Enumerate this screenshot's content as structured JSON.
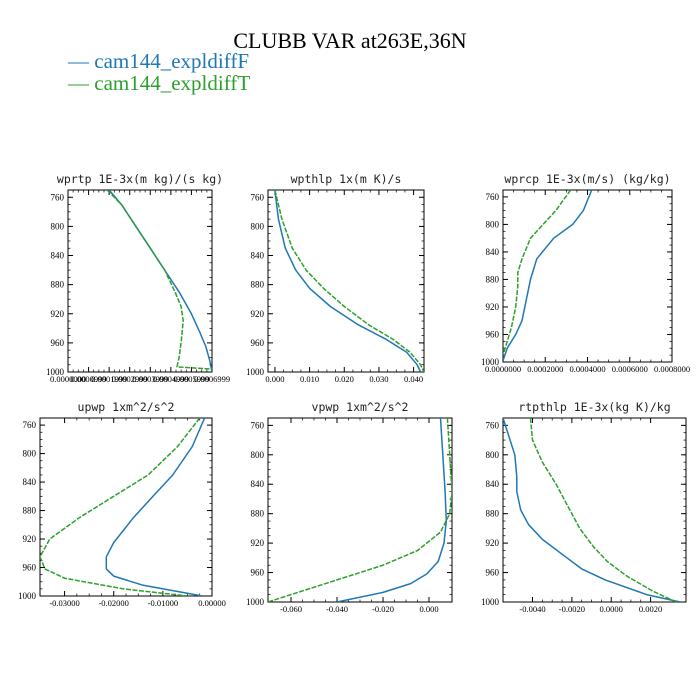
{
  "title": "CLUBB VAR at263E,36N",
  "legend": [
    {
      "label": "— cam144_expldiffF",
      "color": "#1f77b4"
    },
    {
      "label": "— cam144_expldiffT",
      "color": "#2ca02c"
    }
  ],
  "chart_data": [
    {
      "type": "line",
      "title": "wprtp  1E-3x(m kg)/(s kg)",
      "xlim": [
        0.0,
        0.0007
      ],
      "ylim": [
        1000,
        750
      ],
      "xticks": [
        0.0,
        0.0001,
        0.0002,
        0.0003,
        0.0004,
        0.0005,
        0.0006,
        0.0007
      ],
      "xticklabels": [
        "0.0000000",
        "0.0000999",
        "0.0001999",
        "0.0002999",
        "0.0003999",
        "0.0004999",
        "0.0005999",
        "0.0006999"
      ],
      "yticks": [
        760,
        800,
        840,
        880,
        920,
        960,
        1000
      ],
      "series": [
        {
          "name": "cam144_expldiffF",
          "color": "#1f77b4",
          "x": [
            0.0002,
            0.00026,
            0.00033,
            0.0004,
            0.00047,
            0.00054,
            0.0006,
            0.00064,
            0.00067,
            0.00069,
            0.0007
          ],
          "y": [
            750,
            770,
            800,
            830,
            860,
            890,
            920,
            945,
            965,
            985,
            1000
          ]
        },
        {
          "name": "cam144_expldiffT",
          "color": "#2ca02c",
          "x": [
            0.00019,
            0.00026,
            0.00033,
            0.0004,
            0.00047,
            0.00052,
            0.00055,
            0.00056,
            0.00055,
            0.00054,
            0.00053,
            0.0007
          ],
          "y": [
            750,
            770,
            800,
            830,
            860,
            890,
            910,
            930,
            960,
            980,
            993,
            996
          ]
        }
      ]
    },
    {
      "type": "line",
      "title": "wpthlp  1x(m K)/s",
      "xlim": [
        -0.002,
        0.043
      ],
      "ylim": [
        1000,
        750
      ],
      "xticks": [
        0.0,
        0.01,
        0.02,
        0.03,
        0.04
      ],
      "xticklabels": [
        "0.000",
        "0.010",
        "0.020",
        "0.030",
        "0.040"
      ],
      "yticks": [
        760,
        800,
        840,
        880,
        920,
        960,
        1000
      ],
      "series": [
        {
          "name": "cam144_expldiffF",
          "color": "#1f77b4",
          "x": [
            0.0,
            0.001,
            0.003,
            0.006,
            0.01,
            0.016,
            0.024,
            0.032,
            0.038,
            0.041,
            0.042
          ],
          "y": [
            750,
            790,
            830,
            860,
            885,
            910,
            935,
            955,
            973,
            990,
            1000
          ]
        },
        {
          "name": "cam144_expldiffT",
          "color": "#2ca02c",
          "x": [
            0.0,
            0.002,
            0.005,
            0.009,
            0.014,
            0.02,
            0.027,
            0.034,
            0.039,
            0.042,
            0.043
          ],
          "y": [
            750,
            790,
            830,
            860,
            885,
            910,
            935,
            955,
            973,
            990,
            1000
          ]
        }
      ]
    },
    {
      "type": "line",
      "title": "wprcp  1E-3x(m/s) (kg/kg)",
      "xlim": [
        0.0,
        0.0008
      ],
      "ylim": [
        1000,
        750
      ],
      "xticks": [
        0.0,
        0.0002,
        0.0004,
        0.0006,
        0.0008
      ],
      "xticklabels": [
        "0.0000000",
        "0.0002000",
        "0.0004000",
        "0.0006000",
        "0.0008000"
      ],
      "yticks": [
        760,
        800,
        840,
        880,
        920,
        960,
        1000
      ],
      "series": [
        {
          "name": "cam144_expldiffF",
          "color": "#1f77b4",
          "x": [
            0.00042,
            0.00038,
            0.00033,
            0.00024,
            0.00016,
            0.00013,
            0.00011,
            9e-05,
            6e-05,
            2e-05,
            0.0
          ],
          "y": [
            750,
            780,
            800,
            820,
            850,
            880,
            910,
            940,
            960,
            980,
            998
          ]
        },
        {
          "name": "cam144_expldiffT",
          "color": "#2ca02c",
          "x": [
            0.00032,
            0.00025,
            0.00019,
            0.00013,
            9e-05,
            7e-05,
            7e-05,
            6e-05,
            4e-05,
            2e-05,
            0.0
          ],
          "y": [
            750,
            780,
            800,
            820,
            850,
            870,
            890,
            920,
            950,
            970,
            990
          ]
        }
      ]
    },
    {
      "type": "line",
      "title": "upwp  1xm^2/s^2",
      "xlim": [
        -0.035,
        0.0
      ],
      "ylim": [
        1000,
        750
      ],
      "xticks": [
        -0.03,
        -0.02,
        -0.01,
        0.0
      ],
      "xticklabels": [
        "-0.03000",
        "-0.02000",
        "-0.01000",
        "0.00000"
      ],
      "yticks": [
        760,
        800,
        840,
        880,
        920,
        960,
        1000
      ],
      "series": [
        {
          "name": "cam144_expldiffF",
          "color": "#1f77b4",
          "x": [
            -0.0015,
            -0.004,
            -0.008,
            -0.012,
            -0.016,
            -0.02,
            -0.0215,
            -0.0215,
            -0.02,
            -0.014,
            -0.006,
            -0.002
          ],
          "y": [
            750,
            790,
            830,
            860,
            890,
            925,
            945,
            962,
            972,
            985,
            995,
            1000
          ]
        },
        {
          "name": "cam144_expldiffT",
          "color": "#2ca02c",
          "x": [
            -0.0025,
            -0.007,
            -0.013,
            -0.02,
            -0.027,
            -0.033,
            -0.035,
            -0.034,
            -0.03,
            -0.018,
            -0.005
          ],
          "y": [
            750,
            790,
            830,
            860,
            890,
            920,
            945,
            962,
            975,
            990,
            1000
          ]
        }
      ]
    },
    {
      "type": "line",
      "title": "vpwp  1xm^2/s^2",
      "xlim": [
        -0.07,
        0.01
      ],
      "ylim": [
        1000,
        750
      ],
      "xticks": [
        -0.06,
        -0.04,
        -0.02,
        0.0
      ],
      "xticklabels": [
        "-0.060",
        "-0.040",
        "-0.020",
        "0.000"
      ],
      "yticks": [
        760,
        800,
        840,
        880,
        920,
        960,
        1000
      ],
      "series": [
        {
          "name": "cam144_expldiffF",
          "color": "#1f77b4",
          "x": [
            0.005,
            0.006,
            0.007,
            0.0075,
            0.0065,
            0.004,
            -0.001,
            -0.008,
            -0.02,
            -0.04
          ],
          "y": [
            750,
            800,
            850,
            890,
            920,
            945,
            962,
            975,
            987,
            1000
          ]
        },
        {
          "name": "cam144_expldiffT",
          "color": "#2ca02c",
          "x": [
            0.008,
            0.009,
            0.01,
            0.009,
            0.005,
            -0.005,
            -0.02,
            -0.04,
            -0.06,
            -0.07
          ],
          "y": [
            750,
            800,
            850,
            880,
            905,
            930,
            950,
            970,
            990,
            1000
          ]
        }
      ]
    },
    {
      "type": "line",
      "title": "rtpthlp  1E-3x(kg K)/kg",
      "xlim": [
        -0.0055,
        0.0038
      ],
      "ylim": [
        1000,
        750
      ],
      "xticks": [
        -0.004,
        -0.002,
        0.0,
        0.002
      ],
      "xticklabels": [
        "-0.0040",
        "-0.0020",
        "0.0000",
        "0.0020"
      ],
      "yticks": [
        760,
        800,
        840,
        880,
        920,
        960,
        1000
      ],
      "series": [
        {
          "name": "cam144_expldiffF",
          "color": "#1f77b4",
          "x": [
            -0.0055,
            -0.0049,
            -0.0048,
            -0.0048,
            -0.0046,
            -0.0042,
            -0.0035,
            -0.0025,
            -0.0015,
            -0.0003,
            0.0018,
            0.0035
          ],
          "y": [
            750,
            800,
            830,
            850,
            875,
            895,
            915,
            935,
            955,
            970,
            990,
            1000
          ]
        },
        {
          "name": "cam144_expldiffT",
          "color": "#2ca02c",
          "x": [
            -0.0041,
            -0.004,
            -0.0035,
            -0.0028,
            -0.0022,
            -0.0016,
            -0.0009,
            -0.0002,
            0.0008,
            0.0021,
            0.0033
          ],
          "y": [
            750,
            780,
            810,
            840,
            870,
            900,
            925,
            945,
            965,
            985,
            1000
          ]
        }
      ]
    }
  ]
}
